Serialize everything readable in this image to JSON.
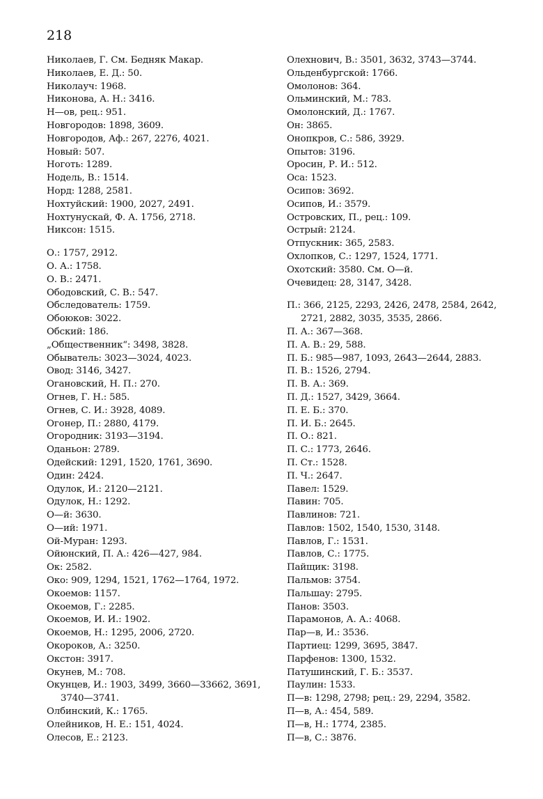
{
  "page_number": "218",
  "left_column": {
    "groups": [
      {
        "entries": [
          [
            "Николаев, Г. См. Бедняк Макар."
          ],
          [
            "Николаев, Е. Д.: 50."
          ],
          [
            "Николауч: 1968."
          ],
          [
            "Никонова, А. Н.: 3416."
          ],
          [
            "Н—ов, рец.: 951."
          ],
          [
            "Новгородов: 1898, 3609."
          ],
          [
            "Новгородов, Аф.: 267, 2276, 4021."
          ],
          [
            "Новый: 507."
          ],
          [
            "Ноготь: 1289."
          ],
          [
            "Нодель, В.: 1514."
          ],
          [
            "Норд: 1288, 2581."
          ],
          [
            "Нохтуйский: 1900, 2027, 2491."
          ],
          [
            "Нохтунускай, Ф. А. 1756, 2718."
          ],
          [
            "Никсон: 1515."
          ]
        ]
      },
      {
        "entries": [
          [
            "О.: 1757, 2912."
          ],
          [
            "О. А.: 1758."
          ],
          [
            "О. В.: 2471."
          ],
          [
            "Ободовский, С. В.: 547."
          ],
          [
            "Обследователь: 1759."
          ],
          [
            "Обоюков: 3022."
          ],
          [
            "Обский: 186."
          ],
          [
            "„Общественник“: 3498, 3828."
          ],
          [
            "Обыватель: 3023—3024, 4023."
          ],
          [
            "Овод: 3146, 3427."
          ],
          [
            "Огановский, Н. П.: 270."
          ],
          [
            "Огнев, Г. Н.: 585."
          ],
          [
            "Огнев, С. И.: 3928, 4089."
          ],
          [
            "Огонер, П.: 2880, 4179."
          ],
          [
            "Огородник: 3193—3194."
          ],
          [
            "Оданьон: 2789."
          ],
          [
            "Одейский: 1291, 1520, 1761, 3690."
          ],
          [
            "Один: 2424."
          ],
          [
            "Одулок, И.: 2120—2121."
          ],
          [
            "Одулок, Н.: 1292."
          ],
          [
            "О—й: 3630."
          ],
          [
            "О—ий: 1971."
          ],
          [
            "Ой-Муран: 1293."
          ],
          [
            "Ойюнский, П. А.: 426—427, 984."
          ],
          [
            "Ок: 2582."
          ],
          [
            "Око: 909, 1294, 1521, 1762—1764, 1972."
          ],
          [
            "Окоемов: 1157."
          ],
          [
            "Окоемов, Г.: 2285."
          ],
          [
            "Окоемов, И. И.: 1902."
          ],
          [
            "Окоемов, Н.: 1295, 2006, 2720."
          ],
          [
            "Окороков, А.: 3250."
          ],
          [
            "Окстон: 3917."
          ],
          [
            "Окунев, М.: 708."
          ],
          [
            "Окунцев, И.: 1903, 3499, 3660—33662, 3691,",
            "3740—3741."
          ],
          [
            "Олбинский, К.: 1765."
          ],
          [
            "Олейников, Н. Е.: 151, 4024."
          ],
          [
            "Олесов, Е.: 2123."
          ]
        ]
      }
    ]
  },
  "right_column": {
    "groups": [
      {
        "entries": [
          [
            "Олехнович, В.: 3501, 3632, 3743—3744."
          ],
          [
            "Ольденбургской: 1766."
          ],
          [
            "Омолонов: 364."
          ],
          [
            "Ольминский, М.: 783."
          ],
          [
            "Омолонский, Д.: 1767."
          ],
          [
            "Он: 3865."
          ],
          [
            "Онопкров, С.: 586, 3929."
          ],
          [
            "Опытов: 3196."
          ],
          [
            "Оросин, Р. И.: 512."
          ],
          [
            "Оса: 1523."
          ],
          [
            "Осипов: 3692."
          ],
          [
            "Осипов, И.: 3579."
          ],
          [
            "Островских, П., рец.: 109."
          ],
          [
            "Острый: 2124."
          ],
          [
            "Отпускник: 365, 2583."
          ],
          [
            "Охлопков, С.: 1297, 1524, 1771."
          ],
          [
            "Охотский: 3580. См. О—й."
          ],
          [
            "Очевидец: 28, 3147, 3428."
          ]
        ]
      },
      {
        "entries": [
          [
            "П.: 366, 2125, 2293, 2426, 2478, 2584, 2642,",
            "2721, 2882, 3035, 3535, 2866."
          ],
          [
            "П. А.: 367—368."
          ],
          [
            "П. А. В.: 29, 588."
          ],
          [
            "П. Б.: 985—987, 1093, 2643—2644, 2883."
          ],
          [
            "П. В.: 1526, 2794."
          ],
          [
            "П. В. А.: 369."
          ],
          [
            "П. Д.: 1527, 3429, 3664."
          ],
          [
            "П. Е. Б.: 370."
          ],
          [
            "П. И. Б.: 2645."
          ],
          [
            "П. О.: 821."
          ],
          [
            "П. С.: 1773, 2646."
          ],
          [
            "П. Ст.: 1528."
          ],
          [
            "П. Ч.: 2647."
          ],
          [
            "Павел: 1529."
          ],
          [
            "Павин: 705."
          ],
          [
            "Павлинов: 721."
          ],
          [
            "Павлов: 1502, 1540, 1530, 3148."
          ],
          [
            "Павлов, Г.: 1531."
          ],
          [
            "Павлов, С.: 1775."
          ],
          [
            "Пайщик: 3198."
          ],
          [
            "Пальмов: 3754."
          ],
          [
            "Пальшау: 2795."
          ],
          [
            "Панов: 3503."
          ],
          [
            "Парамонов, А. А.: 4068."
          ],
          [
            "Пар—в, И.: 3536."
          ],
          [
            "Партиец: 1299, 3695, 3847."
          ],
          [
            "Парфенов: 1300, 1532."
          ],
          [
            "Патушинский, Г. Б.: 3537."
          ],
          [
            "Паулин: 1533."
          ],
          [
            "П—в: 1298, 2798; рец.: 29, 2294, 3582."
          ],
          [
            "П—в, А.: 454, 589."
          ],
          [
            "П—в, Н.: 1774, 2385."
          ],
          [
            "П—в, С.: 3876."
          ]
        ]
      }
    ]
  }
}
